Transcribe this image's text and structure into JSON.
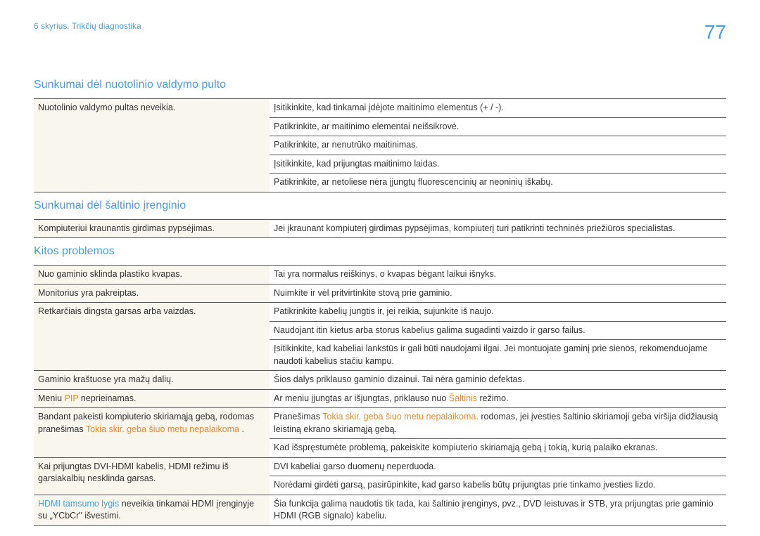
{
  "header": {
    "chapter": "6 skyrius. Trikčių diagnostika",
    "page_number": "77"
  },
  "section_1": {
    "title": "Sunkumai dėl nuotolinio valdymo pulto",
    "rows": [
      {
        "left": "Nuotolinio valdymo pultas neveikia.",
        "right": "Įsitikinkite, kad tinkamai įdėjote maitinimo elementus (+ / -)."
      },
      {
        "left": "",
        "right": "Patikrinkite, ar maitinimo elementai neišsikrovė."
      },
      {
        "left": "",
        "right": "Patikrinkite, ar nenutrūko maitinimas."
      },
      {
        "left": "",
        "right": "Įsitikinkite, kad prijungtas maitinimo laidas."
      },
      {
        "left": "",
        "right": "Patikrinkite, ar netoliese nėra įjungtų fluorescencinių ar neoninių iškabų."
      }
    ],
    "span_first": 5
  },
  "section_2": {
    "title": "Sunkumai dėl šaltinio įrenginio",
    "rows": [
      {
        "left": "Kompiuteriui kraunantis girdimas pypsėjimas.",
        "right": "Jei įkraunant kompiuterį girdimas pypsėjimas, kompiuterį turi patikrinti techninės priežiūros specialistas."
      }
    ]
  },
  "section_3": {
    "title": "Kitos problemos",
    "row1": {
      "left": "Nuo gaminio sklinda plastiko kvapas.",
      "right": "Tai yra normalus reiškinys, o kvapas bėgant laikui išnyks."
    },
    "row2": {
      "left": "Monitorius yra pakreiptas.",
      "right": "Nuimkite ir vėl pritvirtinkite stovą prie gaminio."
    },
    "row3a": {
      "left": "Retkarčiais dingsta garsas arba vaizdas.",
      "right": "Patikrinkite kabelių jungtis ir, jei reikia, sujunkite iš naujo."
    },
    "row3b": {
      "right": "Naudojant itin kietus arba storus kabelius galima sugadinti vaizdo ir garso failus."
    },
    "row3c": {
      "right": "Įsitikinkite, kad kabeliai lankstūs ir gali būti naudojami ilgai. Jei montuojate gaminį prie sienos, rekomenduojame naudoti kabelius stačiu kampu."
    },
    "row4": {
      "left": "Gaminio kraštuose yra mažų dalių.",
      "right": "Šios dalys priklauso gaminio dizainui. Tai nėra gaminio defektas."
    },
    "row5": {
      "left_a": "Meniu ",
      "left_pip": "PIP",
      "left_b": " neprieinamas.",
      "right_a": "Ar meniu įjungtas ar išjungtas, priklauso nuo ",
      "right_src": "Šaltinis",
      "right_b": " režimo."
    },
    "row6": {
      "left_a": "Bandant pakeisti kompiuterio skiriamąją gebą, rodomas pranešimas ",
      "left_orange": "Tokia skir. geba šiuo metu nepalaikoma ",
      "left_b": ".",
      "right_a": "Pranešimas ",
      "right_orange": "Tokia skir. geba šiuo metu nepalaikoma.",
      "right_b": " rodomas, jei įvesties šaltinio skiriamoji geba viršija didžiausią leistiną ekrano skiriamąją gebą.",
      "right_line2": "Kad išspręstumėte problemą, pakeiskite kompiuterio skiriamąją gebą į tokią, kurią palaiko ekranas."
    },
    "row7": {
      "left": "Kai prijungtas DVI-HDMI kabelis, HDMI režimu iš garsiakalbių nesklinda garsas.",
      "right_a": "DVI kabeliai garso duomenų neperduoda.",
      "right_b": "Norėdami girdėti garsą, pasirūpinkite, kad garso kabelis būtų prijungtas prie tinkamo įvesties lizdo."
    },
    "row8": {
      "left_blue": "HDMI tamsumo lygis",
      "left_rest": " neveikia tinkamai HDMI įrenginyje su „YCbCr\" išvestimi.",
      "right": "Šia funkcija galima naudotis tik tada, kai šaltinio įrenginys, pvz., DVD leistuvas ir STB, yra prijungtas prie gaminio HDMI (RGB signalo) kabeliu."
    }
  }
}
